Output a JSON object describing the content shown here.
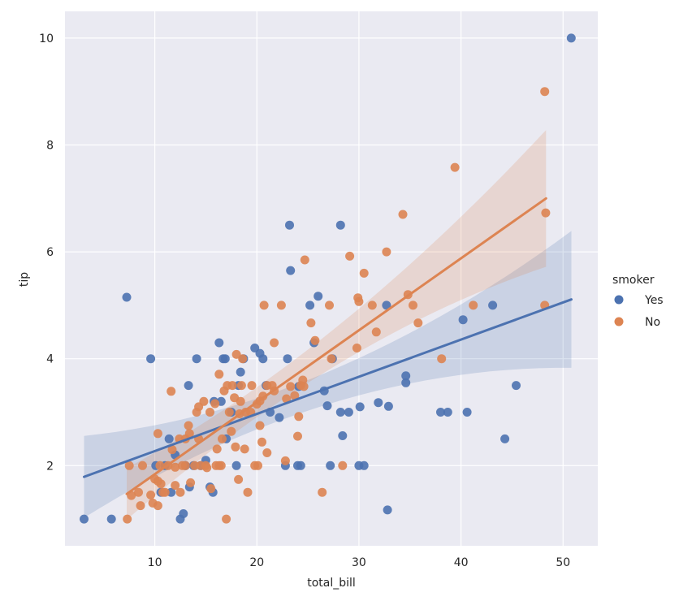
{
  "chart_data": {
    "type": "scatter",
    "xlabel": "total_bill",
    "ylabel": "tip",
    "xlim": [
      1.2,
      53.4
    ],
    "ylim": [
      0.5,
      10.5
    ],
    "xticks": [
      10,
      20,
      30,
      40,
      50
    ],
    "yticks": [
      2,
      4,
      6,
      8,
      10
    ],
    "grid": true,
    "legend_title": "smoker",
    "legend_placement": "right",
    "colors": {
      "background": "#eaeaf2",
      "grid": "#ffffff",
      "Yes": "#4c72b0",
      "No": "#dd8452"
    },
    "series": [
      {
        "name": "Yes",
        "color": "#4c72b0",
        "points": [
          [
            3.07,
            1.0
          ],
          [
            5.75,
            1.0
          ],
          [
            7.25,
            5.15
          ],
          [
            9.6,
            4.0
          ],
          [
            10.1,
            2.0
          ],
          [
            10.6,
            1.5
          ],
          [
            11.0,
            2.0
          ],
          [
            11.4,
            2.5
          ],
          [
            11.6,
            1.5
          ],
          [
            12.0,
            2.2
          ],
          [
            12.5,
            1.0
          ],
          [
            12.8,
            1.1
          ],
          [
            13.0,
            2.0
          ],
          [
            13.3,
            3.5
          ],
          [
            13.4,
            1.6
          ],
          [
            13.8,
            2.0
          ],
          [
            14.1,
            4.0
          ],
          [
            14.5,
            2.0
          ],
          [
            15.0,
            2.1
          ],
          [
            15.4,
            1.6
          ],
          [
            15.7,
            1.5
          ],
          [
            15.8,
            3.2
          ],
          [
            16.3,
            4.3
          ],
          [
            16.5,
            3.2
          ],
          [
            16.7,
            4.0
          ],
          [
            16.9,
            4.0
          ],
          [
            17.0,
            2.5
          ],
          [
            17.5,
            3.0
          ],
          [
            18.0,
            2.0
          ],
          [
            18.2,
            3.5
          ],
          [
            18.4,
            3.75
          ],
          [
            18.7,
            4.0
          ],
          [
            19.8,
            4.2
          ],
          [
            20.3,
            4.1
          ],
          [
            20.6,
            4.0
          ],
          [
            20.9,
            3.5
          ],
          [
            21.3,
            3.0
          ],
          [
            22.2,
            2.9
          ],
          [
            22.8,
            2.0
          ],
          [
            23.0,
            4.0
          ],
          [
            23.2,
            6.5
          ],
          [
            23.3,
            5.65
          ],
          [
            24.0,
            2.0
          ],
          [
            24.1,
            3.48
          ],
          [
            24.3,
            2.0
          ],
          [
            25.2,
            5.0
          ],
          [
            25.6,
            4.3
          ],
          [
            26.0,
            5.17
          ],
          [
            26.6,
            3.4
          ],
          [
            26.9,
            3.12
          ],
          [
            27.2,
            2.0
          ],
          [
            27.4,
            4.0
          ],
          [
            28.2,
            6.5
          ],
          [
            28.2,
            3.0
          ],
          [
            28.4,
            2.56
          ],
          [
            29.0,
            3.0
          ],
          [
            30.0,
            2.0
          ],
          [
            30.1,
            3.1
          ],
          [
            30.5,
            2.0
          ],
          [
            31.9,
            3.18
          ],
          [
            32.7,
            5.0
          ],
          [
            32.8,
            1.17
          ],
          [
            32.9,
            3.11
          ],
          [
            34.6,
            3.55
          ],
          [
            34.6,
            3.68
          ],
          [
            38.0,
            3.0
          ],
          [
            38.7,
            3.0
          ],
          [
            40.2,
            4.73
          ],
          [
            40.6,
            3.0
          ],
          [
            43.1,
            5.0
          ],
          [
            44.3,
            2.5
          ],
          [
            45.4,
            3.5
          ],
          [
            50.8,
            10.0
          ]
        ],
        "fit": {
          "x": [
            3.07,
            50.81
          ],
          "y": [
            1.79,
            5.11
          ]
        }
      },
      {
        "name": "No",
        "color": "#dd8452",
        "points": [
          [
            7.3,
            1.0
          ],
          [
            7.5,
            2.0
          ],
          [
            7.7,
            1.44
          ],
          [
            8.4,
            1.5
          ],
          [
            8.6,
            1.25
          ],
          [
            8.8,
            2.0
          ],
          [
            9.6,
            1.45
          ],
          [
            9.8,
            1.3
          ],
          [
            10.0,
            1.75
          ],
          [
            10.3,
            2.6
          ],
          [
            10.3,
            1.25
          ],
          [
            10.3,
            1.71
          ],
          [
            10.5,
            2.0
          ],
          [
            10.6,
            1.66
          ],
          [
            10.8,
            1.5
          ],
          [
            11.0,
            1.5
          ],
          [
            11.3,
            2.0
          ],
          [
            11.6,
            3.39
          ],
          [
            11.7,
            2.3
          ],
          [
            12.0,
            1.97
          ],
          [
            12.0,
            1.63
          ],
          [
            12.4,
            2.5
          ],
          [
            12.5,
            1.5
          ],
          [
            12.7,
            2.0
          ],
          [
            13.0,
            2.5
          ],
          [
            13.0,
            2.0
          ],
          [
            13.3,
            2.75
          ],
          [
            13.4,
            2.6
          ],
          [
            13.5,
            1.68
          ],
          [
            13.9,
            2.0
          ],
          [
            14.1,
            3.0
          ],
          [
            14.3,
            2.5
          ],
          [
            14.3,
            3.1
          ],
          [
            14.5,
            2.0
          ],
          [
            14.8,
            3.2
          ],
          [
            15.0,
            2.0
          ],
          [
            15.1,
            1.96
          ],
          [
            15.4,
            3.0
          ],
          [
            15.5,
            1.57
          ],
          [
            15.9,
            3.16
          ],
          [
            16.0,
            2.0
          ],
          [
            16.1,
            2.31
          ],
          [
            16.3,
            3.71
          ],
          [
            16.3,
            2.0
          ],
          [
            16.5,
            2.0
          ],
          [
            16.6,
            2.5
          ],
          [
            16.8,
            3.4
          ],
          [
            17.0,
            1.0
          ],
          [
            17.1,
            3.5
          ],
          [
            17.3,
            3.0
          ],
          [
            17.5,
            2.64
          ],
          [
            17.6,
            3.5
          ],
          [
            17.8,
            3.27
          ],
          [
            17.9,
            2.35
          ],
          [
            18.0,
            4.08
          ],
          [
            18.2,
            1.74
          ],
          [
            18.3,
            2.97
          ],
          [
            18.4,
            3.2
          ],
          [
            18.5,
            3.5
          ],
          [
            18.6,
            4.0
          ],
          [
            18.8,
            2.31
          ],
          [
            18.9,
            3.0
          ],
          [
            19.1,
            1.5
          ],
          [
            19.4,
            3.0
          ],
          [
            19.5,
            3.5
          ],
          [
            19.8,
            2.0
          ],
          [
            20.0,
            3.15
          ],
          [
            20.1,
            2.0
          ],
          [
            20.3,
            3.21
          ],
          [
            20.3,
            2.75
          ],
          [
            20.5,
            2.44
          ],
          [
            20.6,
            3.3
          ],
          [
            20.7,
            5.0
          ],
          [
            21.0,
            2.24
          ],
          [
            21.0,
            3.5
          ],
          [
            21.5,
            3.5
          ],
          [
            21.7,
            3.4
          ],
          [
            21.7,
            4.3
          ],
          [
            22.4,
            5.0
          ],
          [
            22.8,
            2.09
          ],
          [
            22.9,
            3.25
          ],
          [
            23.3,
            3.48
          ],
          [
            23.7,
            3.31
          ],
          [
            24.0,
            2.55
          ],
          [
            24.1,
            2.92
          ],
          [
            24.3,
            3.5
          ],
          [
            24.5,
            3.6
          ],
          [
            24.6,
            3.48
          ],
          [
            24.7,
            5.85
          ],
          [
            25.3,
            4.67
          ],
          [
            25.7,
            4.34
          ],
          [
            26.4,
            1.5
          ],
          [
            27.1,
            5.0
          ],
          [
            27.3,
            4.0
          ],
          [
            28.4,
            2.0
          ],
          [
            29.1,
            5.92
          ],
          [
            29.8,
            4.2
          ],
          [
            29.9,
            5.14
          ],
          [
            30.0,
            5.07
          ],
          [
            30.5,
            5.6
          ],
          [
            31.3,
            5.0
          ],
          [
            31.7,
            4.5
          ],
          [
            32.7,
            6.0
          ],
          [
            34.3,
            6.7
          ],
          [
            34.8,
            5.2
          ],
          [
            35.3,
            5.0
          ],
          [
            35.8,
            4.67
          ],
          [
            38.1,
            4.0
          ],
          [
            39.4,
            7.58
          ],
          [
            41.2,
            5.0
          ],
          [
            48.2,
            9.0
          ],
          [
            48.3,
            6.73
          ],
          [
            48.2,
            5.0
          ]
        ],
        "fit": {
          "x": [
            7.25,
            48.33
          ],
          "y": [
            1.47,
            7.0
          ]
        }
      }
    ]
  }
}
